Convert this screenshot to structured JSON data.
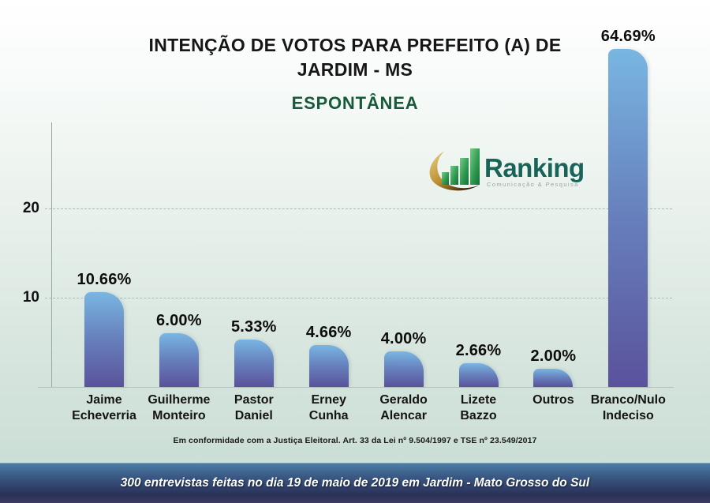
{
  "title": {
    "line1": "INTENÇÃO DE VOTOS PARA PREFEITO (A) DE",
    "line2": "JARDIM - MS",
    "subtitle": "ESPONTÂNEA"
  },
  "logo": {
    "name": "Ranking",
    "tagline": "Comunicação & Pesquisa"
  },
  "chart_data": {
    "type": "bar",
    "title": "INTENÇÃO DE VOTOS PARA PREFEITO (A) DE JARDIM - MS",
    "subtitle": "ESPONTÂNEA",
    "categories": [
      "Jaime Echeverria",
      "Guilherme Monteiro",
      "Pastor Daniel",
      "Erney Cunha",
      "Geraldo Alencar",
      "Lizete Bazzo",
      "Outros",
      "Branco/Nulo Indeciso"
    ],
    "category_lines": [
      [
        "Jaime",
        "Echeverria"
      ],
      [
        "Guilherme",
        "Monteiro"
      ],
      [
        "Pastor",
        "Daniel"
      ],
      [
        "Erney",
        "Cunha"
      ],
      [
        "Geraldo",
        "Alencar"
      ],
      [
        "Lizete",
        "Bazzo"
      ],
      [
        "Outros"
      ],
      [
        "Branco/Nulo",
        "Indeciso"
      ]
    ],
    "values": [
      10.66,
      6.0,
      5.33,
      4.66,
      4.0,
      2.66,
      2.0,
      64.69
    ],
    "value_labels": [
      "10.66%",
      "6.00%",
      "5.33%",
      "4.66%",
      "4.00%",
      "2.66%",
      "2.00%",
      "64.69%"
    ],
    "xlabel": "",
    "ylabel": "",
    "y_ticks": [
      10,
      20
    ],
    "ylim": [
      0,
      30
    ],
    "grid": true,
    "legend": false,
    "note": "tallest bar (64.69%) is clipped by the top of the plot area"
  },
  "colors": {
    "bar_top": "#79b6e2",
    "bar_mid": "#6781bd",
    "bar_bottom": "#5a529c",
    "subtitle_green": "#17593a",
    "logo_green_dark": "#186459",
    "logo_bar_green": "#1f8a44",
    "logo_gold": "#c29a3e",
    "banner_top": "#4c7da6",
    "banner_bottom": "#2b3159"
  },
  "footer": {
    "disclaimer": "Em conformidade com a Justiça Eleitoral. Art. 33 da Lei nº 9.504/1997 e TSE nº 23.549/2017",
    "banner": "300 entrevistas feitas no dia 19 de maio de 2019 em Jardim - Mato Grosso do Sul"
  }
}
